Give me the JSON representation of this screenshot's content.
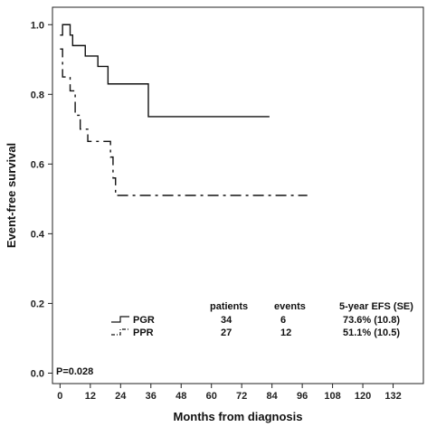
{
  "chart_data": {
    "type": "line",
    "subtype": "kaplan-meier step",
    "xlabel": "Months from diagnosis",
    "ylabel": "Event-free survival",
    "xlim": [
      -3,
      144
    ],
    "ylim": [
      -0.03,
      1.05
    ],
    "xticks": [
      0,
      12,
      24,
      36,
      48,
      60,
      72,
      84,
      96,
      108,
      120,
      132
    ],
    "yticks": [
      0.0,
      0.2,
      0.4,
      0.6,
      0.8,
      1.0
    ],
    "ytick_labels": [
      "0.0",
      "0.2",
      "0.4",
      "0.6",
      "0.8",
      "1.0"
    ],
    "grid": false,
    "legend_position": "bottom-center (inside plot)",
    "pvalue_text": "P=0.028",
    "table_headers": [
      "patients",
      "events",
      "5-year EFS (SE)"
    ],
    "series": [
      {
        "name": "PGR",
        "patients": "34",
        "events": "6",
        "efs": "73.6% (10.8)",
        "line_style": "solid",
        "color": "#111111",
        "steps": [
          [
            0,
            0.97
          ],
          [
            1,
            1.0
          ],
          [
            4,
            0.97
          ],
          [
            5,
            0.94
          ],
          [
            10,
            0.91
          ],
          [
            15,
            0.88
          ],
          [
            19,
            0.83
          ],
          [
            35,
            0.736
          ],
          [
            83,
            0.736
          ]
        ]
      },
      {
        "name": "PPR",
        "patients": "27",
        "events": "12",
        "efs": "51.1% (10.5)",
        "line_style": "dash-dot",
        "color": "#111111",
        "steps": [
          [
            0,
            0.93
          ],
          [
            1,
            0.85
          ],
          [
            4,
            0.81
          ],
          [
            6,
            0.74
          ],
          [
            8,
            0.7
          ],
          [
            11,
            0.665
          ],
          [
            20,
            0.62
          ],
          [
            21,
            0.56
          ],
          [
            22,
            0.51
          ],
          [
            98,
            0.51
          ]
        ]
      }
    ]
  }
}
